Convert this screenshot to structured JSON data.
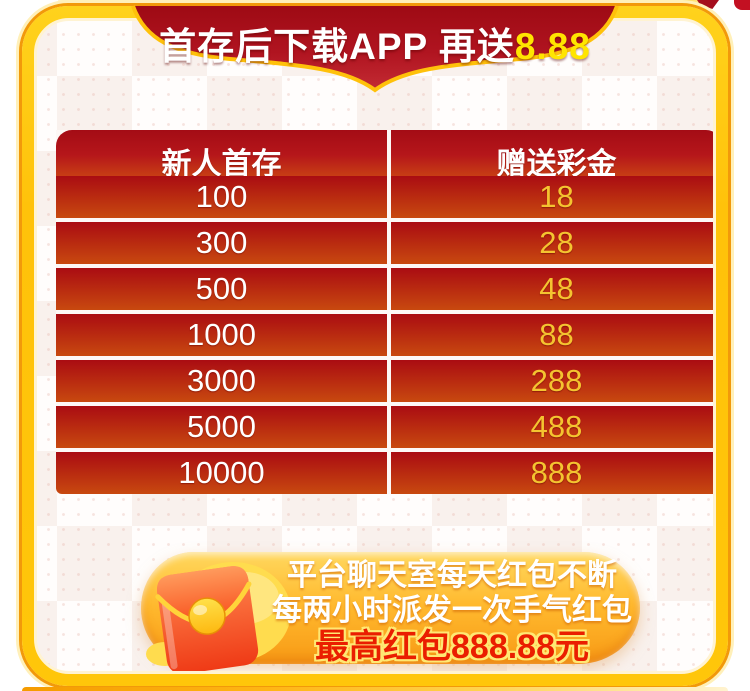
{
  "banner": {
    "text_main": "首存后下载APP 再送",
    "text_highlight": "8.88"
  },
  "table": {
    "headers": [
      "新人首存",
      "赠送彩金"
    ],
    "rows": [
      [
        "100",
        "18"
      ],
      [
        "300",
        "28"
      ],
      [
        "500",
        "48"
      ],
      [
        "1000",
        "88"
      ],
      [
        "3000",
        "288"
      ],
      [
        "5000",
        "488"
      ],
      [
        "10000",
        "888"
      ]
    ]
  },
  "promo": {
    "line1": "平台聊天室每天红包不断",
    "line2": "每两小时派发一次手气红包",
    "line3": "最高红包888.88元"
  },
  "colors": {
    "banner_red_top": "#9e0a14",
    "banner_red_bottom": "#c32b33",
    "gold_frame": "#ffc60a",
    "row_red_top": "#aa0c12",
    "row_orange_bottom": "#c8490f",
    "bonus_yellow": "#f4c430",
    "highlight_yellow": "#ffe500",
    "pill_orange": "#f89a15",
    "max_red": "#ea1e00"
  }
}
